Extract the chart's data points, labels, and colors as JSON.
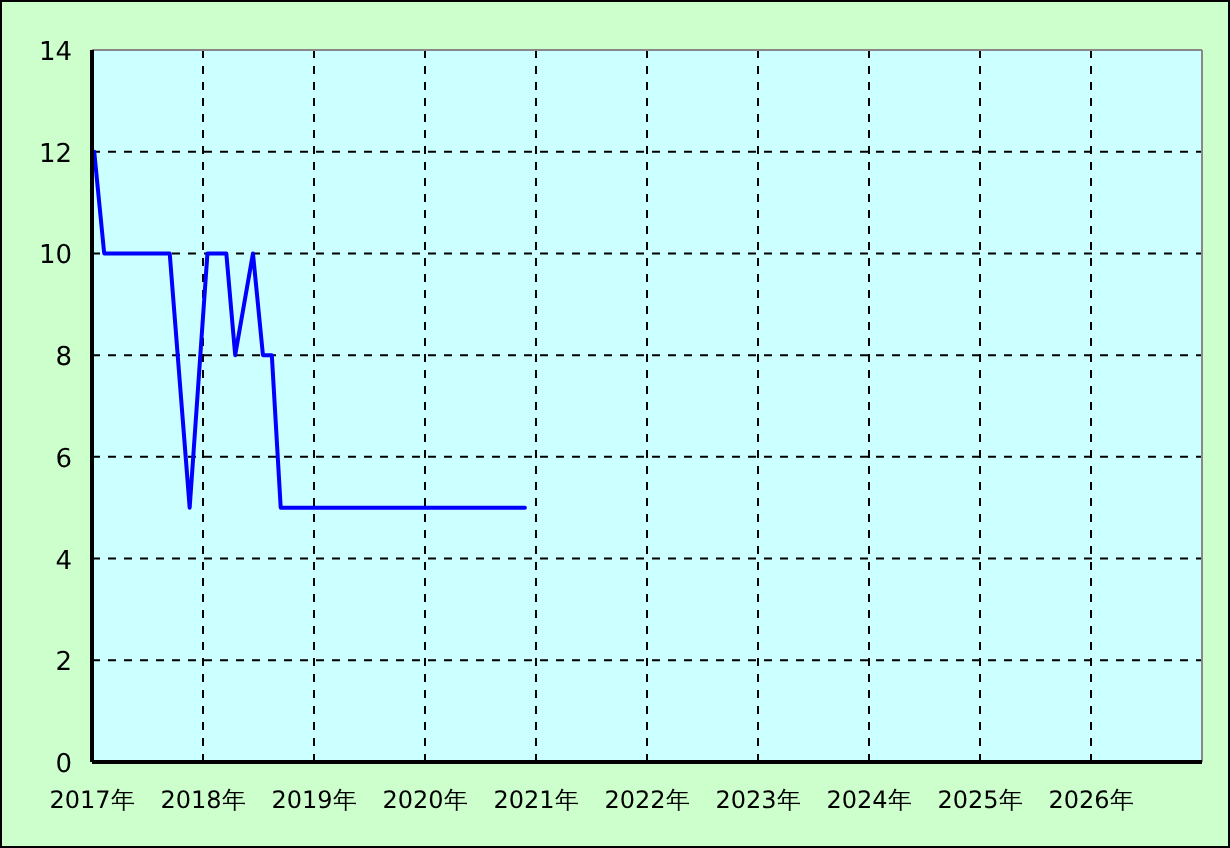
{
  "chart_data": {
    "type": "line",
    "x": [
      2017.02,
      2017.11,
      2017.7,
      2017.88,
      2018.04,
      2018.21,
      2018.29,
      2018.45,
      2018.54,
      2018.62,
      2018.7,
      2020.9
    ],
    "series": [
      {
        "color": "#0000ff",
        "values": [
          12,
          10,
          10,
          5,
          10,
          10,
          8,
          10,
          8,
          8,
          5,
          5
        ]
      }
    ],
    "xlim": [
      2017,
      2027
    ],
    "xticks": [
      {
        "value": 2017,
        "label": "2017年"
      },
      {
        "value": 2018,
        "label": "2018年"
      },
      {
        "value": 2019,
        "label": "2019年"
      },
      {
        "value": 2020,
        "label": "2020年"
      },
      {
        "value": 2021,
        "label": "2021年"
      },
      {
        "value": 2022,
        "label": "2022年"
      },
      {
        "value": 2023,
        "label": "2023年"
      },
      {
        "value": 2024,
        "label": "2024年"
      },
      {
        "value": 2025,
        "label": "2025年"
      },
      {
        "value": 2026,
        "label": "2026年"
      }
    ],
    "ylim": [
      0,
      14
    ],
    "yticks": [
      0,
      2,
      4,
      6,
      8,
      10,
      12,
      14
    ],
    "grid": true,
    "line_style": "solid"
  }
}
